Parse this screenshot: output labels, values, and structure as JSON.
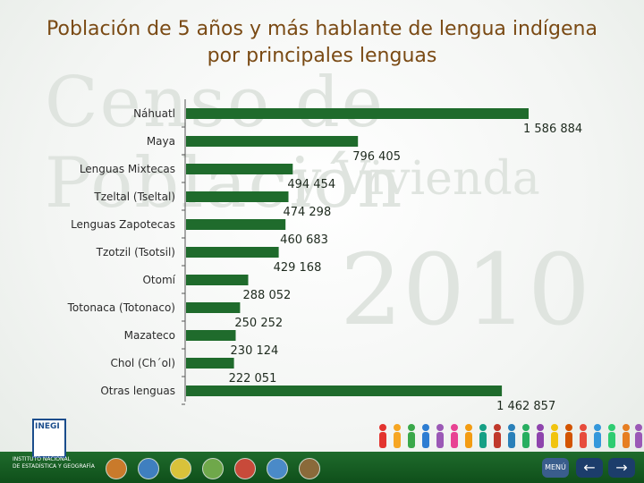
{
  "page": {
    "title_line1": "Población de 5 años y más hablante de lengua indígena",
    "title_line2": "por principales lenguas",
    "watermark": [
      "Censo de Población",
      "y Vivienda",
      "2010"
    ]
  },
  "logo": {
    "name": "INEGI",
    "line1": "INSTITUTO NACIONAL",
    "line2": "DE ESTADÍSTICA Y GEOGRAFÍA"
  },
  "nav": {
    "menu_label": "MENÚ",
    "back_icon": "arrow-left-icon",
    "forward_icon": "arrow-right-icon"
  },
  "colors": {
    "bar": "#1f6b2c",
    "title": "#7a4a14",
    "label": "#2b2b2b",
    "value": "#1e2a1e"
  },
  "chart_data": {
    "type": "bar",
    "orientation": "horizontal",
    "categories": [
      "Náhuatl",
      "Maya",
      "Lenguas Mixtecas",
      "Tzeltal (Tseltal)",
      "Lenguas Zapotecas",
      "Tzotzil (Tsotsil)",
      "Otomí",
      "Totonaca (Totonaco)",
      "Mazateco",
      "Chol (Ch´ol)",
      "Otras lenguas"
    ],
    "values": [
      1586884,
      796405,
      494454,
      474298,
      460683,
      429168,
      288052,
      250252,
      230124,
      222051,
      1462857
    ],
    "value_labels": [
      "1 586 884",
      "796 405",
      "494 454",
      "474 298",
      "460 683",
      "429 168",
      "288 052",
      "250 252",
      "230 124",
      "222 051",
      "1 462 857"
    ],
    "title": "Población de 5 años y más hablante de lengua indígena por principales lenguas",
    "xlim": [
      0,
      1586884
    ],
    "grid": false,
    "legend": "none"
  }
}
